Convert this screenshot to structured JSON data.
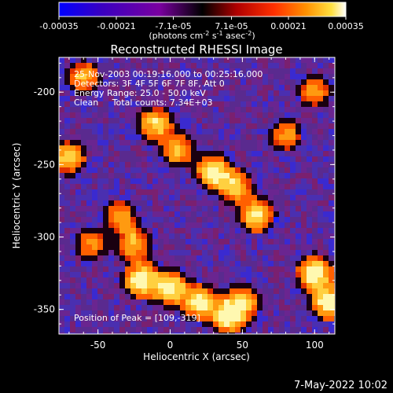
{
  "colorbar": {
    "tick_labels": [
      "-0.00035",
      "-0.00021",
      "-7.1e-05",
      "7.1e-05",
      "0.00021",
      "0.00035"
    ],
    "tick_values": [
      -0.00035,
      -0.00021,
      -7.1e-05,
      7.1e-05,
      0.00021,
      0.00035
    ],
    "range": [
      -0.00035,
      0.00035
    ],
    "units_prefix": "(photons cm",
    "units_exp1": "-2",
    "units_mid": " s",
    "units_exp2": "-1",
    "units_mid2": " asec",
    "units_exp3": "-2",
    "units_suffix": ")",
    "colors": [
      "#0000ff",
      "#3a00c0",
      "#7a00a0",
      "#000000",
      "#b00000",
      "#ff3000",
      "#ff9000",
      "#ffe040",
      "#ffffff"
    ]
  },
  "info": {
    "line1": "25-Nov-2003 00:19:16.000 to 00:25:16.000",
    "line2": "Detectors: 3F 4F 5F 6F 7F 8F, Att 0",
    "line3": "Energy Range: 25.0 - 50.0 keV",
    "line4": "Clean     Total counts: 7.34E+03",
    "peak": "Position of Peak = [109,-319]"
  },
  "footer": {
    "date": "7-May-2022 10:02"
  },
  "chart_data": {
    "type": "heatmap",
    "title": "Reconstructed RHESSI Image",
    "xlabel": "Heliocentric X (arcsec)",
    "ylabel": "Heliocentric Y (arcsec)",
    "xlim": [
      -77,
      114
    ],
    "ylim": [
      -367,
      -176
    ],
    "xticks": [
      -50,
      0,
      50,
      100
    ],
    "xtick_labels": [
      "-50",
      "0",
      "50",
      "100"
    ],
    "yticks": [
      -200,
      -250,
      -300,
      -350
    ],
    "ytick_labels": [
      "-200",
      "-250",
      "-300",
      "-350"
    ],
    "peak_position": [
      109,
      -319
    ],
    "bright_features": [
      {
        "x": -10,
        "y": -222,
        "level": 0.75
      },
      {
        "x": 5,
        "y": -240,
        "level": 0.6
      },
      {
        "x": 30,
        "y": -255,
        "level": 0.85
      },
      {
        "x": 45,
        "y": -265,
        "level": 0.7
      },
      {
        "x": 60,
        "y": -285,
        "level": 0.8
      },
      {
        "x": -70,
        "y": -245,
        "level": 0.7
      },
      {
        "x": -35,
        "y": -285,
        "level": 0.55
      },
      {
        "x": -25,
        "y": -305,
        "level": 0.65
      },
      {
        "x": -20,
        "y": -330,
        "level": 0.95
      },
      {
        "x": 0,
        "y": -335,
        "level": 0.85
      },
      {
        "x": 20,
        "y": -345,
        "level": 0.85
      },
      {
        "x": 40,
        "y": -355,
        "level": 0.9
      },
      {
        "x": 50,
        "y": -345,
        "level": 0.7
      },
      {
        "x": 100,
        "y": -325,
        "level": 1.0
      },
      {
        "x": 110,
        "y": -345,
        "level": 0.95
      },
      {
        "x": 80,
        "y": -230,
        "level": 0.55
      },
      {
        "x": 100,
        "y": -200,
        "level": 0.55
      },
      {
        "x": -60,
        "y": -190,
        "level": 0.6
      },
      {
        "x": -55,
        "y": -305,
        "level": 0.5
      }
    ]
  }
}
